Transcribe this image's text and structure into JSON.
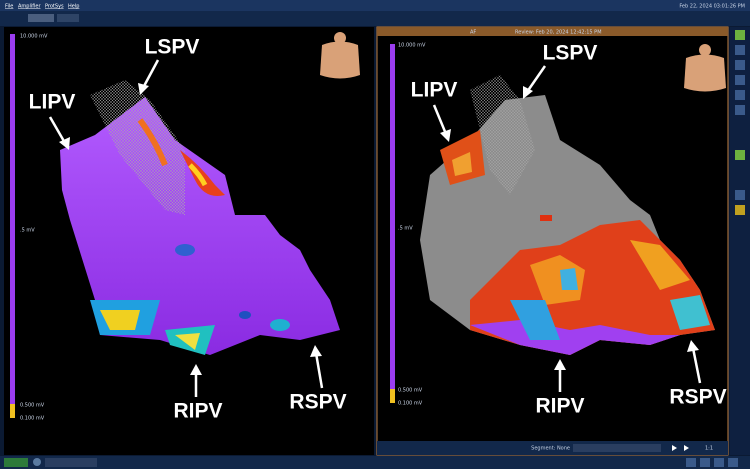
{
  "menu": [
    "File",
    "Amplifier",
    "ProtSys",
    "Help"
  ],
  "clock": "Feb 22, 2024 03:01:26 PM",
  "left_panel": {
    "scale": {
      "top": "10.000 mV",
      "mid": ".5 mV",
      "low": "0.500 mV",
      "min": "0.100 mV"
    },
    "labels": {
      "lspv": "LSPV",
      "lipv": "LIPV",
      "ripv": "RIPV",
      "rspv": "RSPV"
    }
  },
  "right_panel": {
    "header": {
      "mode": "AF",
      "review": "Review: Feb 20, 2024 12:42:15 PM"
    },
    "scale": {
      "top": "10.000 mV",
      "mid": ".5 mV",
      "low": "0.500 mV",
      "min": "0.100 mV"
    },
    "labels": {
      "lspv": "LSPV",
      "lipv": "LIPV",
      "ripv": "RIPV",
      "rspv": "RSPV"
    }
  },
  "footer": {
    "segment": "Segment: None",
    "ratio": "1:1"
  }
}
